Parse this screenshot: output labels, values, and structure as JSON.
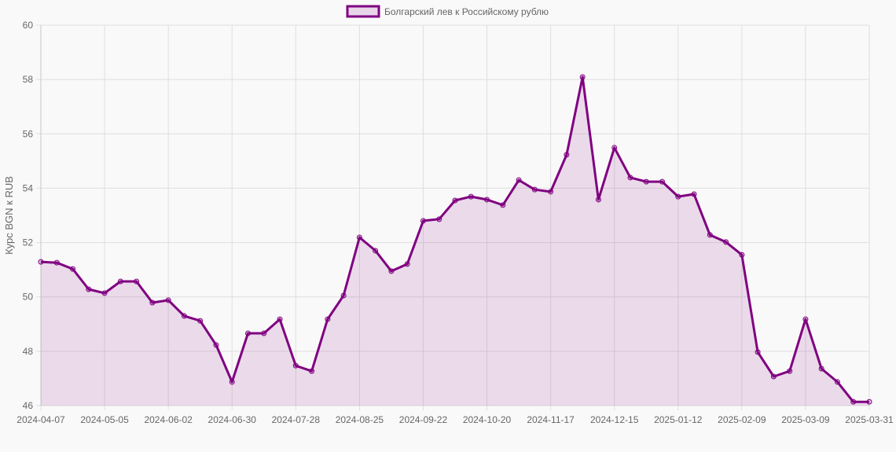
{
  "legend": {
    "label": "Болгарский лев к Российскому рублю",
    "swatch_fill": "#e8d5ea",
    "swatch_stroke": "#800080"
  },
  "colors": {
    "line": "#800080",
    "fill": "rgba(128,0,128,0.12)",
    "grid": "#dedede",
    "tick_text": "#666666",
    "background": "#f9f9f9"
  },
  "chart_data": {
    "type": "area",
    "title": "",
    "xlabel": "",
    "ylabel": "Курс BGN к RUB",
    "ylim": [
      46,
      60
    ],
    "yticks": [
      46,
      48,
      50,
      52,
      54,
      56,
      58,
      60
    ],
    "grid": true,
    "legend_position": "top",
    "x": [
      "2024-04-07",
      "2024-04-14",
      "2024-04-21",
      "2024-04-28",
      "2024-05-05",
      "2024-05-12",
      "2024-05-19",
      "2024-05-26",
      "2024-06-02",
      "2024-06-09",
      "2024-06-16",
      "2024-06-23",
      "2024-06-30",
      "2024-07-07",
      "2024-07-14",
      "2024-07-21",
      "2024-07-28",
      "2024-08-04",
      "2024-08-11",
      "2024-08-18",
      "2024-08-25",
      "2024-09-01",
      "2024-09-08",
      "2024-09-15",
      "2024-09-22",
      "2024-09-29",
      "2024-10-06",
      "2024-10-13",
      "2024-10-20",
      "2024-10-27",
      "2024-11-03",
      "2024-11-10",
      "2024-11-17",
      "2024-11-24",
      "2024-12-01",
      "2024-12-08",
      "2024-12-15",
      "2024-12-22",
      "2024-12-29",
      "2025-01-05",
      "2025-01-12",
      "2025-01-19",
      "2025-01-26",
      "2025-02-02",
      "2025-02-09",
      "2025-02-16",
      "2025-02-23",
      "2025-03-02",
      "2025-03-09",
      "2025-03-16",
      "2025-03-23",
      "2025-03-30",
      "2025-03-31"
    ],
    "xtick_labels": [
      "2024-04-07",
      "2024-05-05",
      "2024-06-02",
      "2024-06-30",
      "2024-07-28",
      "2024-08-25",
      "2024-09-22",
      "2024-10-20",
      "2024-11-17",
      "2024-12-15",
      "2025-01-12",
      "2025-02-09",
      "2025-03-09",
      "2025-03-31"
    ],
    "series": [
      {
        "name": "Болгарский лев к Российскому рублю",
        "values": [
          51.29,
          51.26,
          51.03,
          50.28,
          50.14,
          50.57,
          50.57,
          49.79,
          49.88,
          49.3,
          49.12,
          48.23,
          46.87,
          48.66,
          48.66,
          49.18,
          47.47,
          47.27,
          49.18,
          50.05,
          52.19,
          51.7,
          50.95,
          51.21,
          52.8,
          52.86,
          53.55,
          53.69,
          53.58,
          53.38,
          54.3,
          53.95,
          53.87,
          55.23,
          58.09,
          53.58,
          55.49,
          54.39,
          54.24,
          54.24,
          53.69,
          53.78,
          52.28,
          52.02,
          51.55,
          47.97,
          47.07,
          47.27,
          49.18,
          47.36,
          46.87,
          46.14,
          46.14
        ]
      }
    ]
  }
}
